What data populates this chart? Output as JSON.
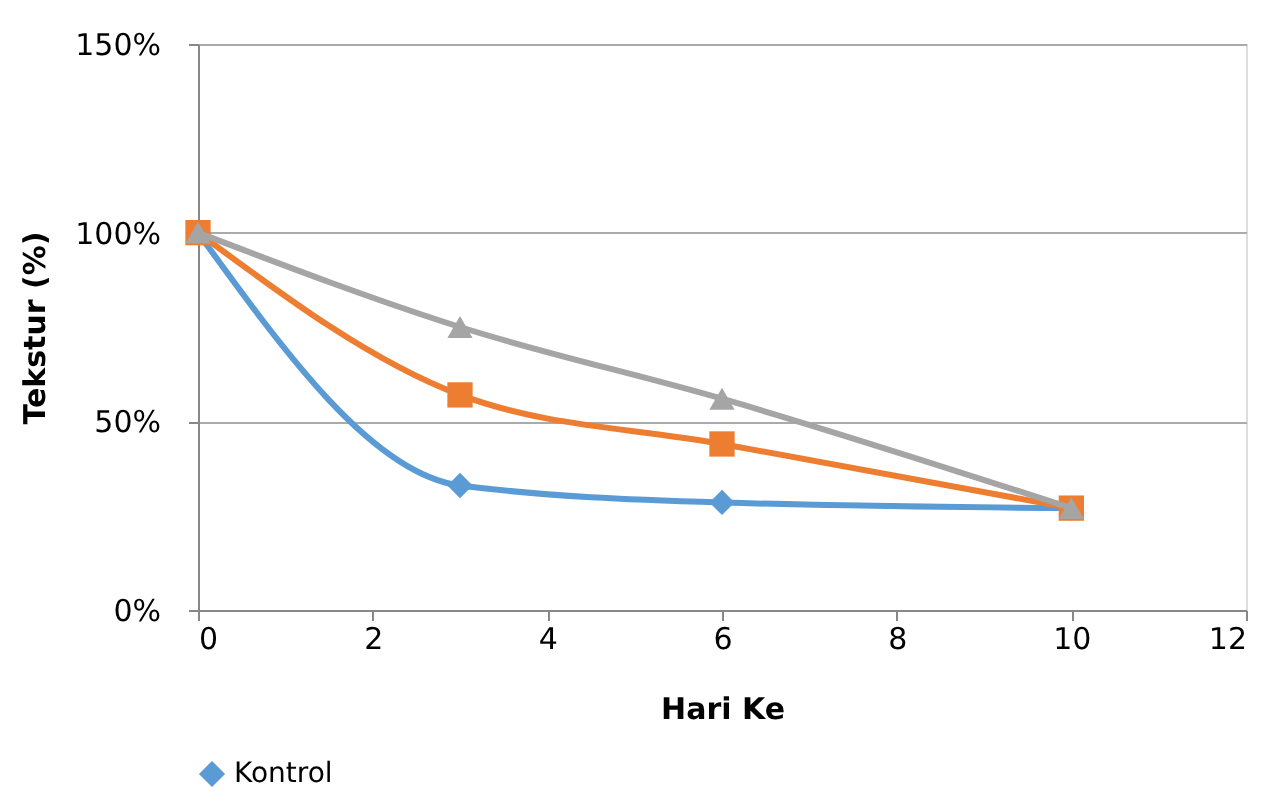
{
  "chart_data": {
    "type": "line",
    "xlabel": "Hari Ke",
    "ylabel": "Tekstur (%)",
    "xlim": [
      0,
      12
    ],
    "xticks": [
      0,
      2,
      4,
      6,
      8,
      10,
      12
    ],
    "ylim": [
      0,
      150
    ],
    "yticks": [
      {
        "value": 0,
        "label": "0%"
      },
      {
        "value": 50,
        "label": "50%"
      },
      {
        "value": 100,
        "label": "100%"
      },
      {
        "value": 150,
        "label": "150%"
      }
    ],
    "grid": "y",
    "legend": "bottom",
    "series": [
      {
        "name": "Kontrol",
        "color": "#5b9bd5",
        "marker": "diamond",
        "x": [
          0,
          3,
          6,
          10
        ],
        "values": [
          100,
          33,
          28.5,
          27
        ]
      },
      {
        "color": "#ed7d31",
        "marker": "square",
        "x": [
          0,
          3,
          6,
          10
        ],
        "values": [
          100,
          57,
          44,
          27
        ]
      },
      {
        "color": "#a5a5a5",
        "marker": "triangle",
        "x": [
          0,
          3,
          6,
          10
        ],
        "values": [
          100,
          75,
          56,
          27
        ]
      }
    ]
  }
}
